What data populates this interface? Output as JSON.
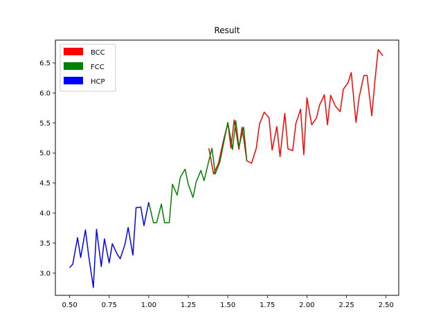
{
  "chart_data": {
    "type": "line",
    "title": "Result",
    "xlabel": "",
    "ylabel": "",
    "xlim": [
      0.41,
      2.58
    ],
    "ylim": [
      2.63,
      6.88
    ],
    "xticks": [
      0.5,
      0.75,
      1.0,
      1.25,
      1.5,
      1.75,
      2.0,
      2.25,
      2.5
    ],
    "xtick_labels": [
      "0.50",
      "0.75",
      "1.00",
      "1.25",
      "1.50",
      "1.75",
      "2.00",
      "2.25",
      "2.50"
    ],
    "yticks": [
      3.0,
      3.5,
      4.0,
      4.5,
      5.0,
      5.5,
      6.0,
      6.5
    ],
    "ytick_labels": [
      "3.0",
      "3.5",
      "4.0",
      "4.5",
      "5.0",
      "5.5",
      "6.0",
      "6.5"
    ],
    "grid": false,
    "legend_position": "top-left",
    "series": [
      {
        "name": "BCC",
        "color": "#ff0000",
        "points": [
          [
            1.38,
            5.08
          ],
          [
            1.41,
            4.65
          ],
          [
            1.44,
            4.82
          ],
          [
            1.47,
            5.18
          ],
          [
            1.5,
            5.5
          ],
          [
            1.52,
            5.08
          ],
          [
            1.54,
            5.55
          ],
          [
            1.57,
            5.06
          ],
          [
            1.59,
            5.43
          ],
          [
            1.62,
            4.87
          ],
          [
            1.65,
            4.83
          ],
          [
            1.68,
            5.08
          ],
          [
            1.7,
            5.48
          ],
          [
            1.73,
            5.68
          ],
          [
            1.76,
            5.59
          ],
          [
            1.78,
            5.05
          ],
          [
            1.81,
            5.44
          ],
          [
            1.83,
            4.94
          ],
          [
            1.86,
            5.66
          ],
          [
            1.88,
            5.07
          ],
          [
            1.91,
            5.04
          ],
          [
            1.93,
            5.49
          ],
          [
            1.96,
            5.73
          ],
          [
            1.98,
            4.97
          ],
          [
            2.0,
            5.92
          ],
          [
            2.03,
            5.47
          ],
          [
            2.06,
            5.58
          ],
          [
            2.08,
            5.8
          ],
          [
            2.11,
            5.97
          ],
          [
            2.13,
            5.47
          ],
          [
            2.15,
            5.96
          ],
          [
            2.18,
            5.78
          ],
          [
            2.21,
            5.69
          ],
          [
            2.23,
            6.06
          ],
          [
            2.26,
            6.17
          ],
          [
            2.28,
            6.34
          ],
          [
            2.31,
            5.51
          ],
          [
            2.33,
            5.93
          ],
          [
            2.36,
            6.29
          ],
          [
            2.38,
            6.29
          ],
          [
            2.41,
            5.62
          ],
          [
            2.43,
            6.21
          ],
          [
            2.45,
            6.72
          ],
          [
            2.48,
            6.62
          ]
        ]
      },
      {
        "name": "FCC",
        "color": "#008000",
        "points": [
          [
            1.0,
            4.18
          ],
          [
            1.03,
            3.84
          ],
          [
            1.05,
            3.84
          ],
          [
            1.08,
            4.15
          ],
          [
            1.1,
            3.84
          ],
          [
            1.13,
            3.84
          ],
          [
            1.15,
            4.48
          ],
          [
            1.18,
            4.3
          ],
          [
            1.2,
            4.6
          ],
          [
            1.23,
            4.73
          ],
          [
            1.25,
            4.48
          ],
          [
            1.28,
            4.26
          ],
          [
            1.3,
            4.52
          ],
          [
            1.33,
            4.71
          ],
          [
            1.35,
            4.54
          ],
          [
            1.38,
            4.87
          ],
          [
            1.4,
            5.08
          ],
          [
            1.42,
            4.65
          ],
          [
            1.45,
            4.85
          ],
          [
            1.47,
            5.12
          ],
          [
            1.5,
            5.51
          ],
          [
            1.53,
            5.06
          ],
          [
            1.55,
            5.54
          ],
          [
            1.57,
            5.1
          ],
          [
            1.6,
            5.43
          ],
          [
            1.62,
            4.87
          ]
        ]
      },
      {
        "name": "HCP",
        "color": "#0000ff",
        "points": [
          [
            0.5,
            3.09
          ],
          [
            0.52,
            3.15
          ],
          [
            0.55,
            3.59
          ],
          [
            0.57,
            3.26
          ],
          [
            0.6,
            3.72
          ],
          [
            0.62,
            3.3
          ],
          [
            0.65,
            2.76
          ],
          [
            0.67,
            3.73
          ],
          [
            0.7,
            3.11
          ],
          [
            0.72,
            3.57
          ],
          [
            0.75,
            3.17
          ],
          [
            0.77,
            3.49
          ],
          [
            0.8,
            3.32
          ],
          [
            0.82,
            3.24
          ],
          [
            0.85,
            3.48
          ],
          [
            0.87,
            3.76
          ],
          [
            0.9,
            3.3
          ],
          [
            0.92,
            4.09
          ],
          [
            0.95,
            4.1
          ],
          [
            0.97,
            3.79
          ],
          [
            1.0,
            4.18
          ]
        ]
      }
    ]
  }
}
